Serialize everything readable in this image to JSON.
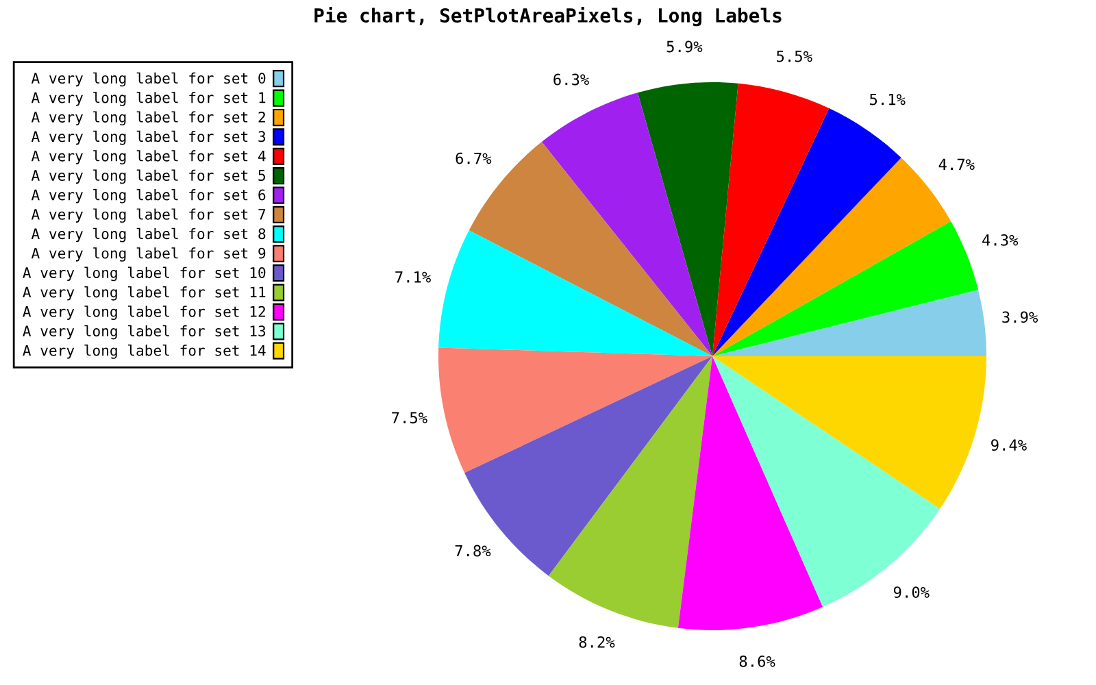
{
  "chart_data": {
    "type": "pie",
    "title": "Pie chart, SetPlotAreaPixels, Long Labels",
    "categories": [
      "A very long label for set 0",
      "A very long label for set 1",
      "A very long label for set 2",
      "A very long label for set 3",
      "A very long label for set 4",
      "A very long label for set 5",
      "A very long label for set 6",
      "A very long label for set 7",
      "A very long label for set 8",
      "A very long label for set 9",
      "A very long label for set 10",
      "A very long label for set 11",
      "A very long label for set 12",
      "A very long label for set 13",
      "A very long label for set 14"
    ],
    "values": [
      3.9,
      4.3,
      4.7,
      5.1,
      5.5,
      5.9,
      6.3,
      6.7,
      7.1,
      7.5,
      7.8,
      8.2,
      8.6,
      9.0,
      9.4
    ],
    "value_labels": [
      "3.9%",
      "4.3%",
      "4.7%",
      "5.1%",
      "5.5%",
      "5.9%",
      "6.3%",
      "6.7%",
      "7.1%",
      "7.5%",
      "7.8%",
      "8.2%",
      "8.6%",
      "9.0%",
      "9.4%"
    ],
    "colors": [
      "#87ceeb",
      "#00ff00",
      "#ffa500",
      "#0000ff",
      "#ff0000",
      "#006400",
      "#a020f0",
      "#cd853f",
      "#00ffff",
      "#fa8072",
      "#6a5acd",
      "#9acd32",
      "#ff00ff",
      "#7fffd4",
      "#ffd700"
    ],
    "legend": "left"
  }
}
